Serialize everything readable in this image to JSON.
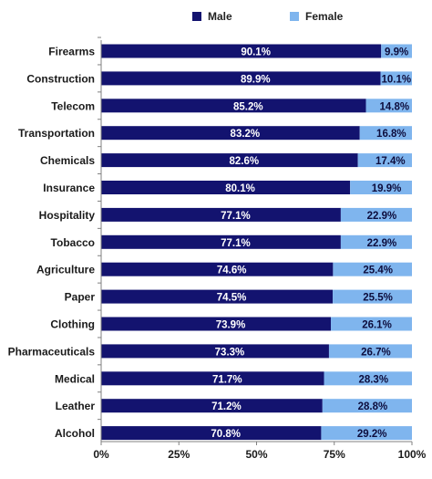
{
  "chart_data": {
    "type": "bar",
    "orientation": "horizontal",
    "stacked": true,
    "categories": [
      "Firearms",
      "Construction",
      "Telecom",
      "Transportation",
      "Chemicals",
      "Insurance",
      "Hospitality",
      "Tobacco",
      "Agriculture",
      "Paper",
      "Clothing",
      "Pharmaceuticals",
      "Medical",
      "Leather",
      "Alcohol"
    ],
    "series": [
      {
        "name": "Male",
        "color": "#13136f",
        "values": [
          90.1,
          89.9,
          85.2,
          83.2,
          82.6,
          80.1,
          77.1,
          77.1,
          74.6,
          74.5,
          73.9,
          73.3,
          71.7,
          71.2,
          70.8
        ],
        "labels": [
          "90.1%",
          "89.9%",
          "85.2%",
          "83.2%",
          "82.6%",
          "80.1%",
          "77.1%",
          "77.1%",
          "74.6%",
          "74.5%",
          "73.9%",
          "73.3%",
          "71.7%",
          "71.2%",
          "70.8%"
        ]
      },
      {
        "name": "Female",
        "color": "#7fb5ee",
        "values": [
          9.9,
          10.1,
          14.8,
          16.8,
          17.4,
          19.9,
          22.9,
          22.9,
          25.4,
          25.5,
          26.1,
          26.7,
          28.3,
          28.8,
          29.2
        ],
        "labels": [
          "9.9%",
          "10.1%",
          "14.8%",
          "16.8%",
          "17.4%",
          "19.9%",
          "22.9%",
          "22.9%",
          "25.4%",
          "25.5%",
          "26.1%",
          "26.7%",
          "28.3%",
          "28.8%",
          "29.2%"
        ]
      }
    ],
    "x_ticks": [
      "0%",
      "25%",
      "50%",
      "75%",
      "100%"
    ],
    "x_tick_values": [
      0,
      25,
      50,
      75,
      100
    ],
    "xlim": [
      0,
      100
    ],
    "title": "",
    "xlabel": "",
    "ylabel": "",
    "grid": false,
    "legend_position": "top-right"
  }
}
